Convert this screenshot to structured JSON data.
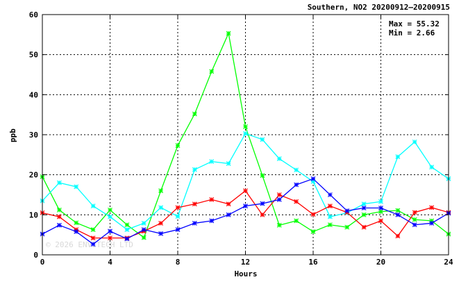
{
  "chart_data": {
    "type": "line",
    "title": "Southern, NO2 20200912–20200915",
    "xlabel": "Hours",
    "ylabel": "ppb",
    "xlim": [
      0,
      24
    ],
    "ylim": [
      0,
      60
    ],
    "xticks": [
      0,
      4,
      8,
      12,
      16,
      20,
      24
    ],
    "yticks": [
      0,
      10,
      20,
      30,
      40,
      50,
      60
    ],
    "grid": true,
    "stats": {
      "max_text": "Max = 55.32",
      "min_text": "Min =  2.66"
    },
    "watermark": "© 2026 ENVITECH LTD",
    "x": [
      0,
      1,
      2,
      3,
      4,
      5,
      6,
      7,
      8,
      9,
      10,
      11,
      12,
      13,
      14,
      15,
      16,
      17,
      18,
      19,
      20,
      21,
      22,
      23,
      24
    ],
    "series": [
      {
        "color": "#00ff00",
        "values": [
          19.5,
          11.2,
          8.0,
          6.3,
          11.2,
          7.5,
          4.3,
          16.0,
          27.3,
          35.2,
          45.8,
          55.32,
          32.0,
          19.8,
          7.4,
          8.5,
          5.8,
          7.5,
          6.9,
          10.0,
          10.8,
          11.1,
          8.8,
          8.5,
          5.2
        ]
      },
      {
        "color": "#00ffff",
        "values": [
          13.5,
          18.0,
          17.0,
          12.2,
          9.5,
          6.3,
          7.9,
          11.8,
          9.6,
          21.3,
          23.3,
          22.8,
          30.3,
          28.8,
          24.0,
          21.2,
          18.3,
          9.5,
          10.5,
          12.7,
          13.3,
          24.5,
          28.2,
          21.9,
          19.0
        ]
      },
      {
        "color": "#ff0000",
        "values": [
          10.5,
          9.5,
          6.3,
          4.2,
          4.2,
          4.2,
          5.9,
          7.9,
          11.8,
          12.7,
          13.8,
          12.7,
          16.0,
          10.0,
          15.0,
          13.3,
          10.1,
          12.2,
          10.6,
          6.9,
          8.5,
          4.7,
          10.6,
          11.8,
          10.6
        ]
      },
      {
        "color": "#0000ff",
        "values": [
          5.2,
          7.4,
          5.8,
          2.66,
          5.9,
          4.0,
          6.3,
          5.3,
          6.3,
          7.9,
          8.5,
          10.0,
          12.2,
          12.8,
          13.8,
          17.5,
          19.0,
          15.0,
          11.0,
          11.7,
          11.7,
          10.0,
          7.5,
          7.9,
          10.4
        ]
      }
    ]
  }
}
